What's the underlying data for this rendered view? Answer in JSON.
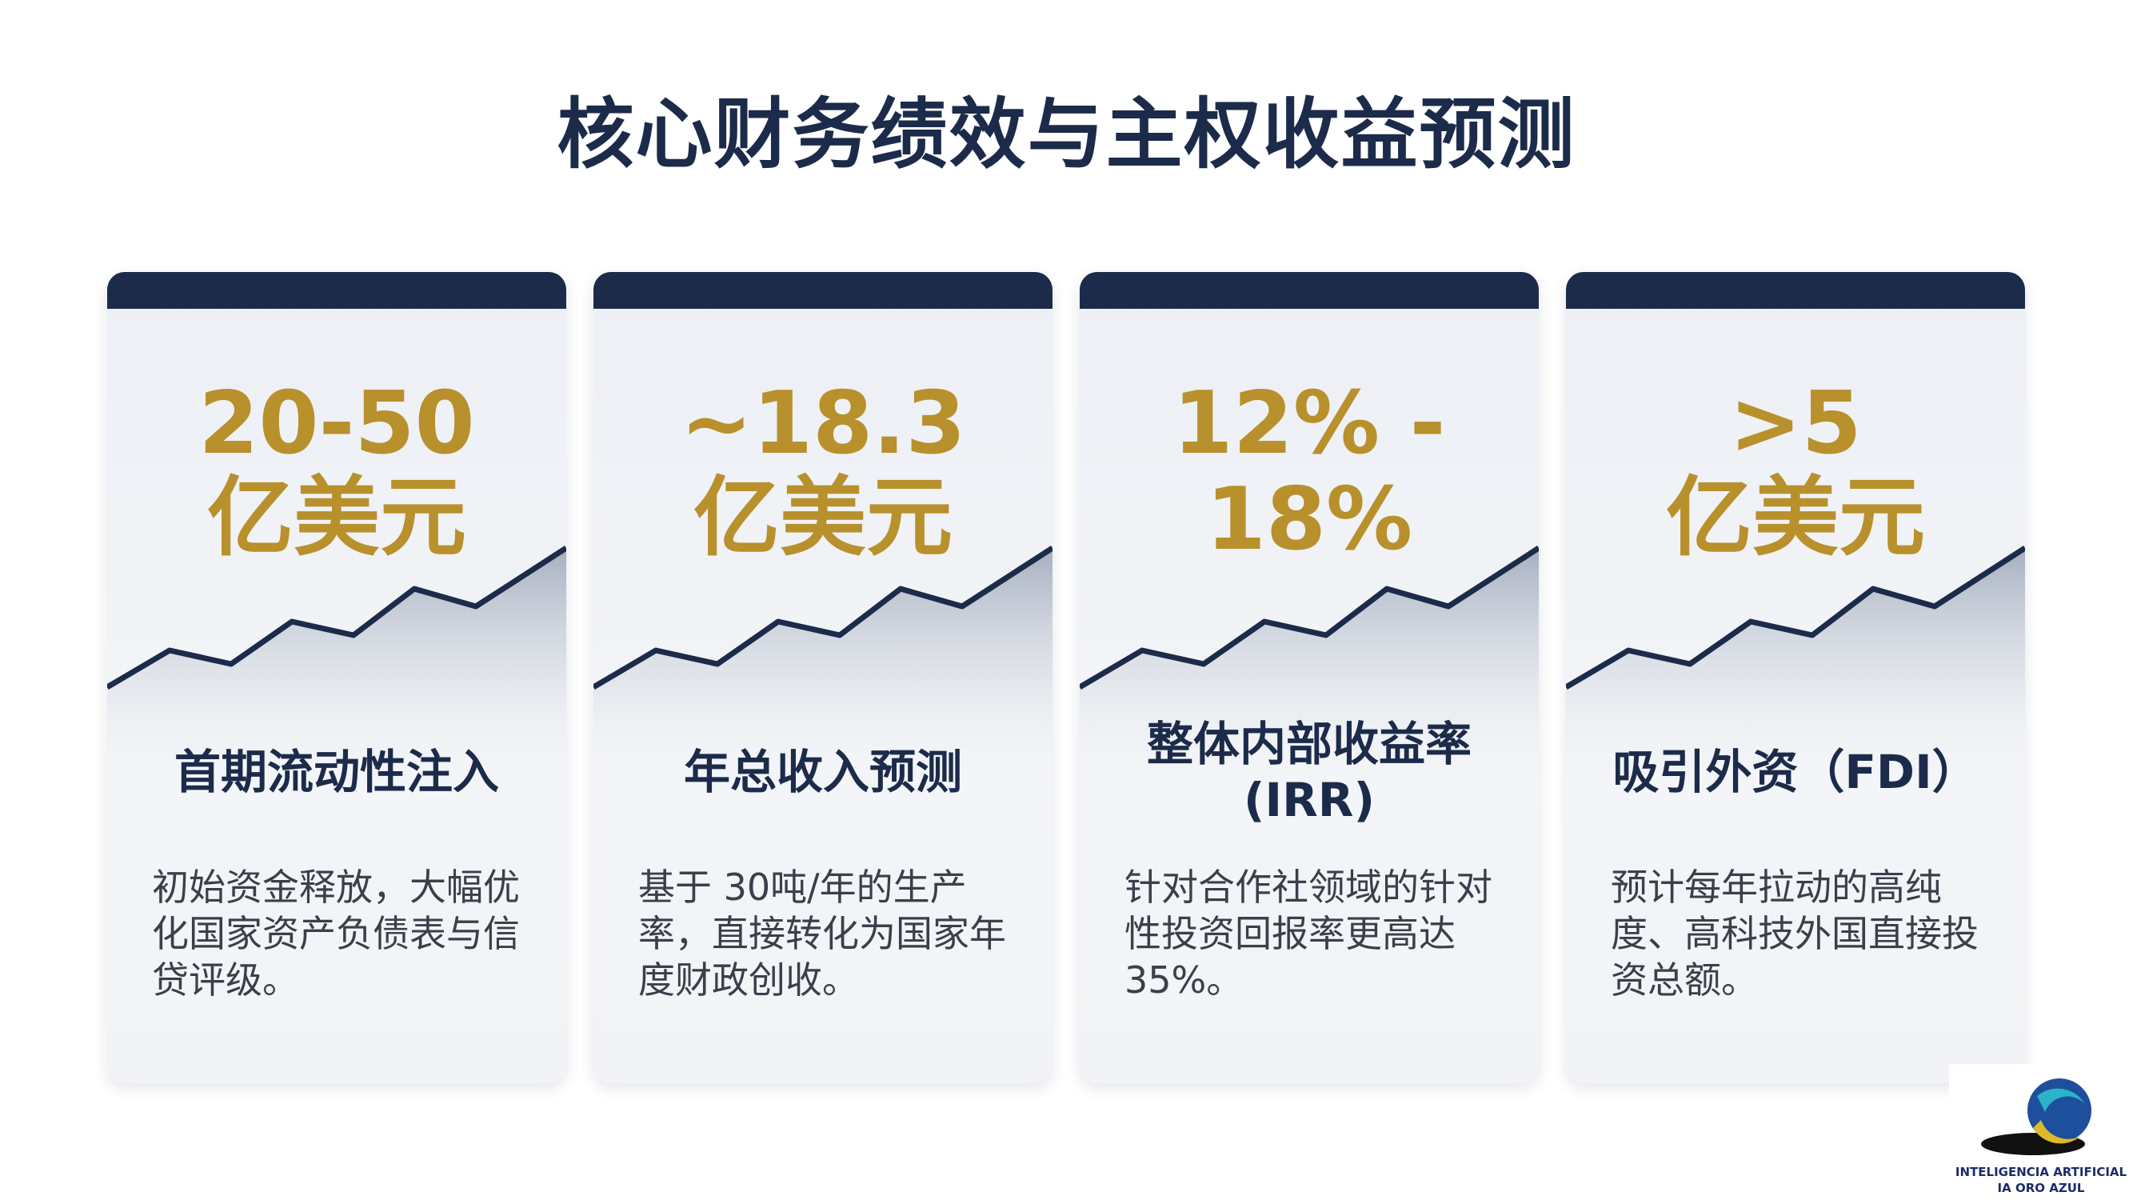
{
  "title": "核心财务绩效与主权收益预测",
  "cards": [
    {
      "value": [
        "20-50",
        "亿美元"
      ],
      "heading": [
        "首期流动性注入"
      ],
      "body": "初始资金释放，大幅优化国家资产负债表与信贷评级。"
    },
    {
      "value": [
        "~18.3",
        "亿美元"
      ],
      "heading": [
        "年总收入预测"
      ],
      "body": "基于 30吨/年的生产率，直接转化为国家年度财政创收。"
    },
    {
      "value": [
        "12% - 18%"
      ],
      "heading": [
        "整体内部收益率",
        "(IRR)"
      ],
      "body": "针对合作社领域的针对性投资回报率更高达35%。"
    },
    {
      "value": [
        ">5",
        "亿美元"
      ],
      "heading": [
        "吸引外资（FDI）"
      ],
      "body": "预计每年拉动的高纯度、高科技外国直接投资总额。"
    }
  ],
  "logo": {
    "line1": "INTELIGENCIA ARTIFICIAL",
    "line2": "IA ORO AZUL"
  }
}
